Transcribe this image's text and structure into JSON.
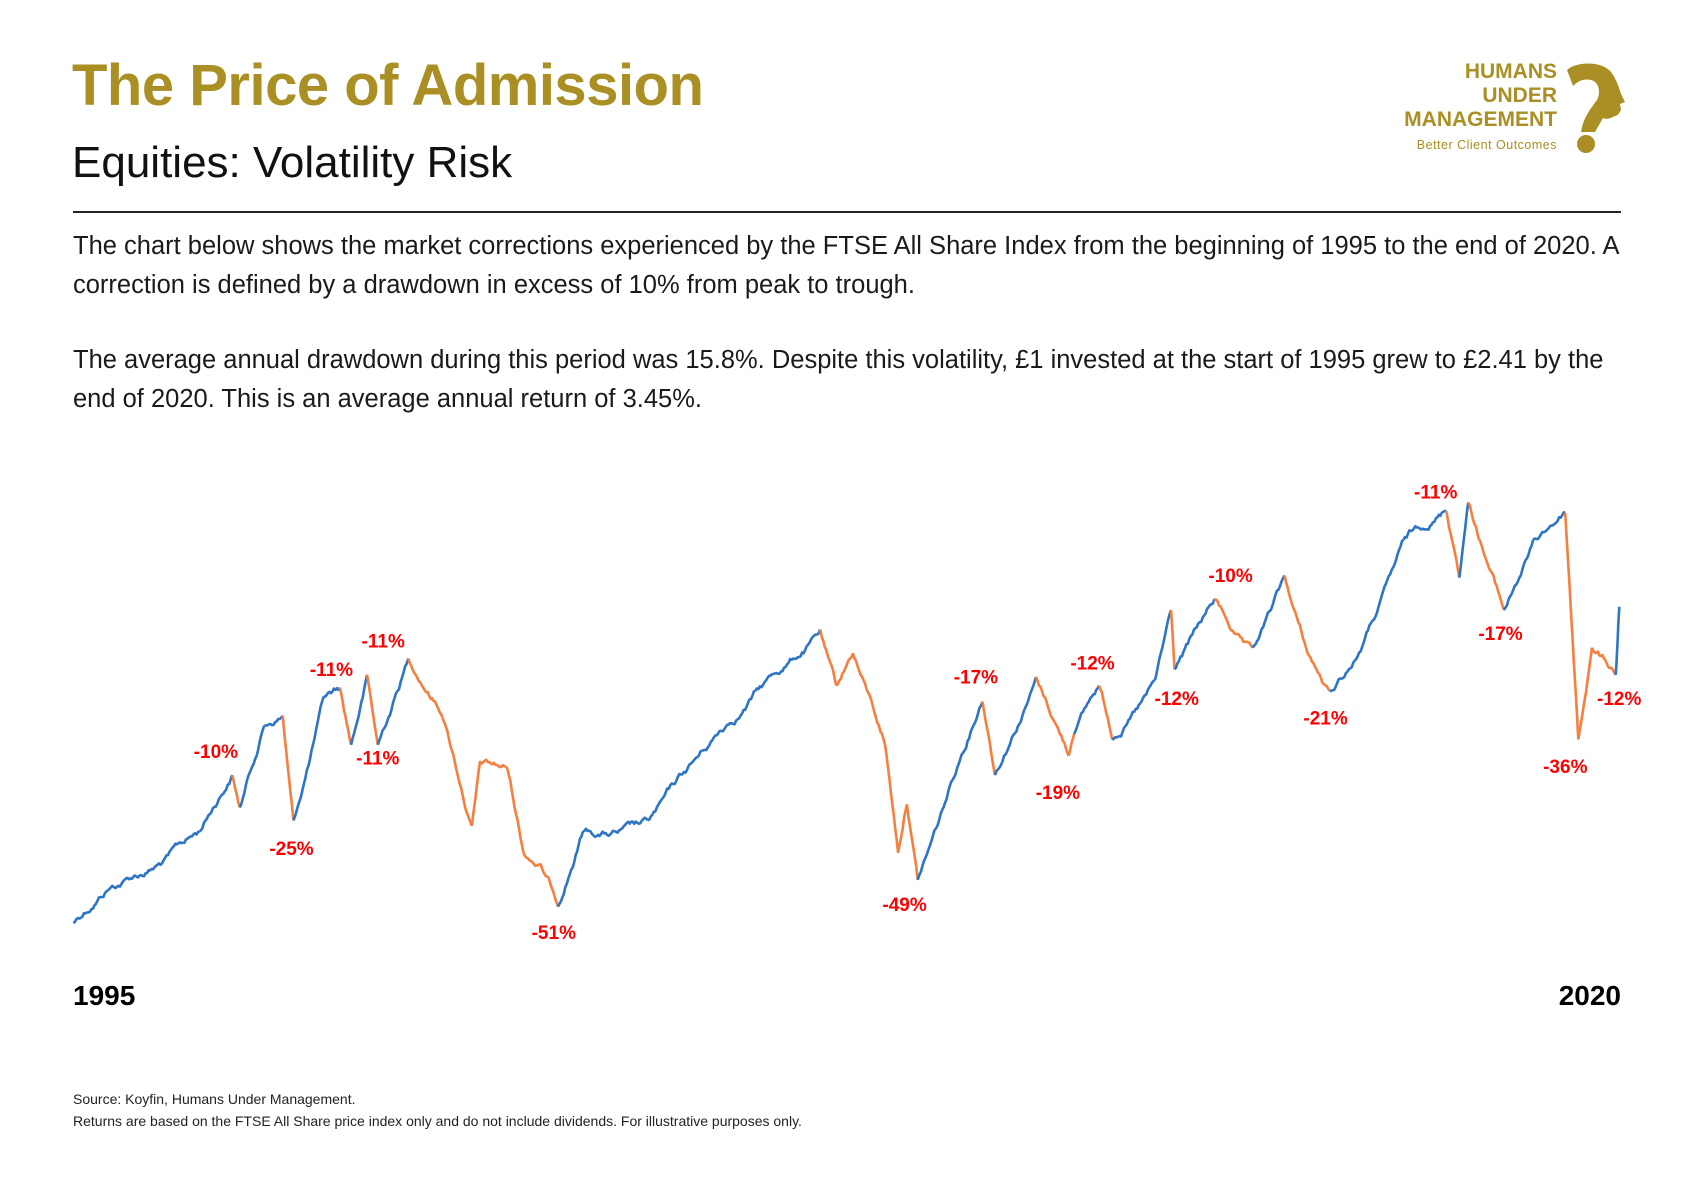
{
  "header": {
    "title": "The Price of Admission",
    "subtitle": "Equities: Volatility Risk"
  },
  "logo": {
    "line1": "HUMANS",
    "line2": "UNDER",
    "line3": "MANAGEMENT",
    "tagline": "Better Client Outcomes",
    "icon": "question-mark-head-icon",
    "color": "#A98F24"
  },
  "intro": {
    "paragraph1": "The chart below shows the market corrections experienced by the FTSE All Share Index from the beginning of 1995 to the end of 2020. A correction is defined by a drawdown in excess of 10% from peak to trough.",
    "paragraph2": "The average annual drawdown during this period was 15.8%. Despite this volatility, £1 invested at the start of 1995 grew to £2.41 by the end of 2020. This is an average annual return of 3.45%."
  },
  "chart_data": {
    "type": "line",
    "title": "",
    "xlabel": "",
    "ylabel": "",
    "x_start_label": "1995",
    "x_end_label": "2020",
    "xlim": [
      1995,
      2021
    ],
    "grid": false,
    "legend": "none",
    "colors": {
      "normal": "#2E75C4",
      "correction": "#F47F3F",
      "label": "#FF0000"
    },
    "series_points_note_fields": [
      "year",
      "value",
      "in_correction"
    ],
    "points": [
      [
        1995.0,
        1500,
        0
      ],
      [
        1995.58,
        1713,
        0
      ],
      [
        1996.49,
        1890,
        0
      ],
      [
        1997.12,
        2104,
        0
      ],
      [
        1997.67,
        2473,
        1
      ],
      [
        1997.8,
        2260,
        0
      ],
      [
        1998.21,
        2799,
        0
      ],
      [
        1998.52,
        2863,
        1
      ],
      [
        1998.7,
        2175,
        0
      ],
      [
        1999.21,
        2991,
        0
      ],
      [
        1999.48,
        3048,
        1
      ],
      [
        1999.67,
        2672,
        0
      ],
      [
        1999.94,
        3133,
        1
      ],
      [
        2000.12,
        2672,
        0
      ],
      [
        2000.63,
        3240,
        1
      ],
      [
        2001.21,
        2849,
        1
      ],
      [
        2001.7,
        2139,
        1
      ],
      [
        2001.84,
        2565,
        1
      ],
      [
        2002.3,
        2515,
        1
      ],
      [
        2002.57,
        1962,
        1
      ],
      [
        2002.84,
        1890,
        1
      ],
      [
        2003.15,
        1607,
        0
      ],
      [
        2003.57,
        2104,
        0
      ],
      [
        2004.66,
        2175,
        0
      ],
      [
        2005.57,
        2636,
        0
      ],
      [
        2006.47,
        3027,
        0
      ],
      [
        2007.56,
        3431,
        1
      ],
      [
        2007.83,
        3062,
        1
      ],
      [
        2008.11,
        3275,
        1
      ],
      [
        2008.65,
        2672,
        1
      ],
      [
        2008.87,
        1962,
        1
      ],
      [
        2009.02,
        2281,
        1
      ],
      [
        2009.2,
        1784,
        0
      ],
      [
        2009.56,
        2175,
        0
      ],
      [
        2010.29,
        2956,
        1
      ],
      [
        2010.5,
        2473,
        0
      ],
      [
        2011.19,
        3119,
        1
      ],
      [
        2011.74,
        2600,
        1
      ],
      [
        2011.83,
        2743,
        0
      ],
      [
        2012.25,
        3062,
        1
      ],
      [
        2012.47,
        2707,
        0
      ],
      [
        2013.19,
        3098,
        0
      ],
      [
        2013.46,
        3559,
        1
      ],
      [
        2013.52,
        3169,
        0
      ],
      [
        2014.19,
        3630,
        1
      ],
      [
        2014.83,
        3311,
        0
      ],
      [
        2015.37,
        3786,
        1
      ],
      [
        2015.73,
        3311,
        1
      ],
      [
        2016.13,
        3027,
        0
      ],
      [
        2016.55,
        3225,
        0
      ],
      [
        2017.37,
        4021,
        0
      ],
      [
        2018.09,
        4212,
        1
      ],
      [
        2018.31,
        3772,
        0
      ],
      [
        2018.46,
        4268,
        1
      ],
      [
        2019.06,
        3559,
        0
      ],
      [
        2019.55,
        4021,
        0
      ],
      [
        2020.09,
        4198,
        1
      ],
      [
        2020.31,
        2707,
        1
      ],
      [
        2020.54,
        3311,
        1
      ],
      [
        2020.94,
        3133,
        0
      ],
      [
        2021.0,
        3580,
        0
      ]
    ],
    "annotations": [
      "-10%",
      "-25%",
      "-11%",
      "-11%",
      "-11%",
      "-51%",
      "-49%",
      "-17%",
      "-19%",
      "-12%",
      "-12%",
      "-10%",
      "-21%",
      "-11%",
      "-17%",
      "-36%",
      "-12%"
    ]
  },
  "footer": {
    "source": "Source: Koyfin, Humans Under Management.",
    "disclaimer": "Returns are based on the FTSE All Share price index only and do not include dividends. For illustrative purposes only."
  }
}
